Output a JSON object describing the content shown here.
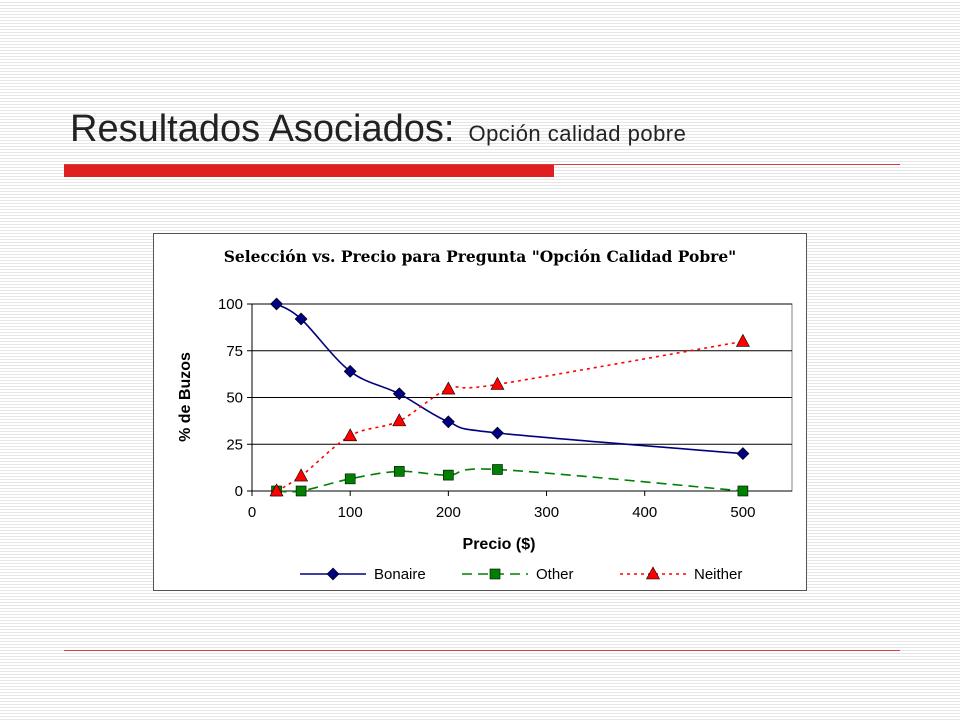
{
  "slide": {
    "title": "Resultados Asociados:",
    "subtitle": "Opción calidad pobre"
  },
  "colors": {
    "accent_red": "#e02020",
    "rule_red": "#d84040"
  },
  "chart_data": {
    "type": "line",
    "title": "Selección vs. Precio para Pregunta \"Opción Calidad Pobre\"",
    "xlabel": "Precio ($)",
    "ylabel": "% de Buzos",
    "x_tick_labels": [
      "0",
      "100",
      "200",
      "300",
      "400",
      "500"
    ],
    "y_tick_labels": [
      "0",
      "25",
      "50",
      "75",
      "100"
    ],
    "ylim": [
      0,
      100
    ],
    "grid": "horizontal",
    "legend_position": "bottom",
    "x": [
      25,
      50,
      100,
      150,
      200,
      250,
      500
    ],
    "series": [
      {
        "name": "Bonaire",
        "color": "#000080",
        "marker": "diamond",
        "line_style": "solid",
        "values": [
          100,
          92,
          64,
          52,
          37,
          31,
          20
        ]
      },
      {
        "name": "Other",
        "color": "#008000",
        "marker": "square",
        "line_style": "dashed",
        "values": [
          0,
          0,
          6.5,
          10.5,
          8.5,
          11.5,
          0
        ]
      },
      {
        "name": "Neither",
        "color": "#ff0000",
        "marker": "triangle",
        "line_style": "dotted",
        "values": [
          0,
          8,
          29.5,
          37.5,
          54.5,
          57,
          80
        ]
      }
    ]
  }
}
